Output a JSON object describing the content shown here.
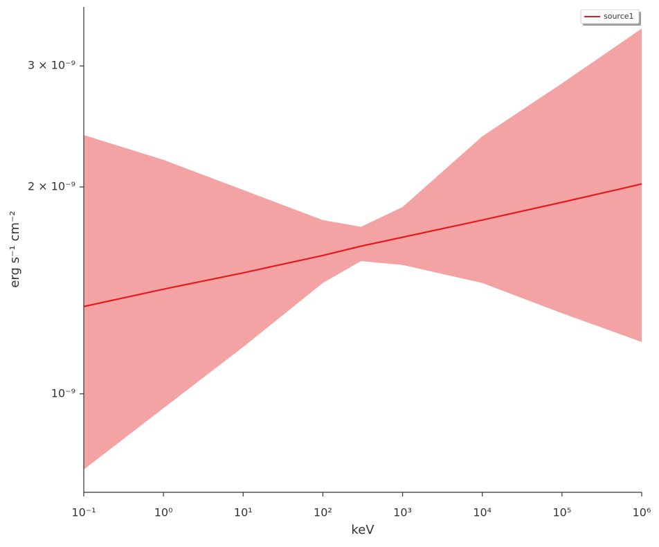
{
  "chart_data": {
    "type": "line",
    "xlabel": "keV",
    "ylabel": "erg s⁻¹ cm⁻²",
    "xscale": "log",
    "yscale": "log",
    "x": [
      0.1,
      1,
      10,
      100,
      300,
      1000,
      10000,
      100000,
      1000000
    ],
    "series": [
      {
        "name": "source1",
        "color": "#e41a1c",
        "values": [
          1.34e-09,
          1.42e-09,
          1.5e-09,
          1.59e-09,
          1.64e-09,
          1.69e-09,
          1.79e-09,
          1.9e-09,
          2.02e-09
        ]
      }
    ],
    "band": {
      "color": "#f4a3a4",
      "upper": [
        2.38e-09,
        2.19e-09,
        1.98e-09,
        1.79e-09,
        1.75e-09,
        1.87e-09,
        2.37e-09,
        2.83e-09,
        3.4e-09
      ],
      "lower": [
        7.76e-10,
        9.53e-10,
        1.17e-09,
        1.45e-09,
        1.56e-09,
        1.54e-09,
        1.45e-09,
        1.31e-09,
        1.19e-09
      ]
    },
    "xlim": [
      0.1,
      1000000
    ],
    "ylim": [
      7.19e-10,
      3.656e-09
    ],
    "xticks": [
      {
        "value": 0.1,
        "label": "10⁻¹"
      },
      {
        "value": 1,
        "label": "10⁰"
      },
      {
        "value": 10,
        "label": "10¹"
      },
      {
        "value": 100,
        "label": "10²"
      },
      {
        "value": 1000,
        "label": "10³"
      },
      {
        "value": 10000,
        "label": "10⁴"
      },
      {
        "value": 100000,
        "label": "10⁵"
      },
      {
        "value": 1000000,
        "label": "10⁶"
      }
    ],
    "yticks": [
      {
        "value": 1e-09,
        "label": "10⁻⁹"
      },
      {
        "value": 2e-09,
        "label": "2 × 10⁻⁹"
      },
      {
        "value": 3e-09,
        "label": "3 × 10⁻⁹"
      }
    ],
    "legend": "upper right"
  }
}
